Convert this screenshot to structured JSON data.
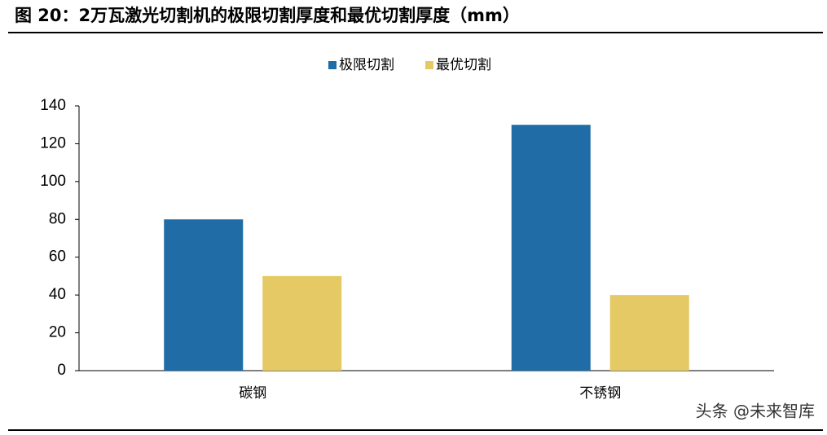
{
  "chart_data": {
    "type": "bar",
    "title": "图 20：2万瓦激光切割机的极限切割厚度和最优切割厚度（mm）",
    "categories": [
      "碳钢",
      "不锈钢"
    ],
    "series": [
      {
        "name": "极限切割",
        "color": "#1f6ca6",
        "values": [
          80,
          130
        ]
      },
      {
        "name": "最优切割",
        "color": "#e5c964",
        "values": [
          50,
          40
        ]
      }
    ],
    "ylim": [
      0,
      140
    ],
    "yticks": [
      0,
      20,
      40,
      60,
      80,
      100,
      120,
      140
    ],
    "grid": false,
    "legend": "top",
    "watermark": "头条 @未来智库"
  }
}
